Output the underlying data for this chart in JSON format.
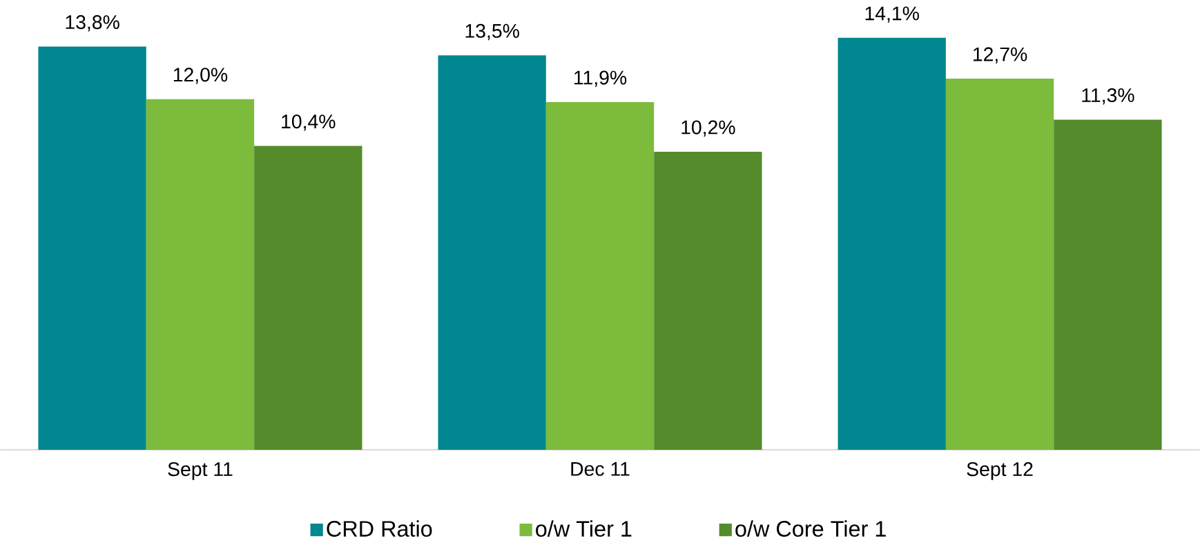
{
  "chart_data": {
    "type": "bar",
    "categories": [
      "Sept 11",
      "Dec 11",
      "Sept 12"
    ],
    "series": [
      {
        "name": "CRD Ratio",
        "color": "#00878f",
        "values": [
          13.8,
          13.5,
          14.1
        ],
        "value_labels": [
          "13,8%",
          "13,5%",
          "14,1%"
        ]
      },
      {
        "name": "o/w Tier 1",
        "color": "#7cbb3c",
        "values": [
          12.0,
          11.9,
          12.7
        ],
        "value_labels": [
          "12,0%",
          "11,9%",
          "12,7%"
        ]
      },
      {
        "name": "o/w Core Tier 1",
        "color": "#558b2a",
        "values": [
          10.4,
          10.2,
          11.3
        ],
        "value_labels": [
          "10,4%",
          "10,2%",
          "11,3%"
        ]
      }
    ],
    "tick_labels": "x",
    "legend": "bottom"
  }
}
